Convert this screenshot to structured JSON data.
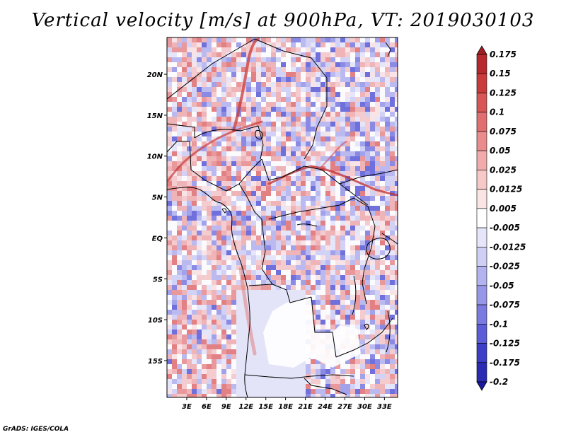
{
  "title": "Vertical velocity [m/s] at 900hPa, VT: 2019030103",
  "credit": "GrADS: IGES/COLA",
  "map": {
    "lon_range": [
      0,
      35
    ],
    "lat_range": [
      -19.5,
      24.5
    ],
    "lat_ticks": [
      {
        "value": 20,
        "label": "20N"
      },
      {
        "value": 15,
        "label": "15N"
      },
      {
        "value": 10,
        "label": "10N"
      },
      {
        "value": 5,
        "label": "5N"
      },
      {
        "value": 0,
        "label": "EQ"
      },
      {
        "value": -5,
        "label": "5S"
      },
      {
        "value": -10,
        "label": "10S"
      },
      {
        "value": -15,
        "label": "15S"
      }
    ],
    "lon_ticks": [
      {
        "value": 3,
        "label": "3E"
      },
      {
        "value": 6,
        "label": "6E"
      },
      {
        "value": 9,
        "label": "9E"
      },
      {
        "value": 12,
        "label": "12E"
      },
      {
        "value": 15,
        "label": "15E"
      },
      {
        "value": 18,
        "label": "18E"
      },
      {
        "value": 21,
        "label": "21E"
      },
      {
        "value": 24,
        "label": "24E"
      },
      {
        "value": 27,
        "label": "27E"
      },
      {
        "value": 30,
        "label": "30E"
      },
      {
        "value": 33,
        "label": "33E"
      }
    ]
  },
  "colorbar": {
    "labels": [
      "0.175",
      "0.15",
      "0.125",
      "0.1",
      "0.075",
      "0.05",
      "0.025",
      "0.0125",
      "0.005",
      "-0.005",
      "-0.0125",
      "-0.025",
      "-0.05",
      "-0.075",
      "-0.1",
      "-0.125",
      "-0.175",
      "-0.2"
    ],
    "colors": [
      "#a01f23",
      "#b8272b",
      "#cc3b3b",
      "#d85656",
      "#e26f6f",
      "#ea8c8c",
      "#f1abab",
      "#f7c8c8",
      "#fbe4e4",
      "#ffffff",
      "#e6e6fb",
      "#cfcff6",
      "#b3b3f0",
      "#9797e9",
      "#7a7ae1",
      "#5c5cd8",
      "#3d3dc9",
      "#2a2ab3",
      "#1a1aa0"
    ]
  },
  "chart_data": {
    "type": "heatmap",
    "title": "Vertical velocity [m/s] at 900hPa, VT: 2019030103",
    "variable": "Vertical velocity",
    "units": "m/s",
    "level": "900hPa",
    "valid_time": "2019030103",
    "xlabel": "",
    "ylabel": "",
    "x_ticks": [
      "3E",
      "6E",
      "9E",
      "12E",
      "15E",
      "18E",
      "21E",
      "24E",
      "27E",
      "30E",
      "33E"
    ],
    "y_ticks": [
      "20N",
      "15N",
      "10N",
      "5N",
      "EQ",
      "5S",
      "10S",
      "15S"
    ],
    "color_levels": [
      -0.2,
      -0.175,
      -0.125,
      -0.1,
      -0.075,
      -0.05,
      -0.025,
      -0.0125,
      -0.005,
      0.005,
      0.0125,
      0.025,
      0.05,
      0.075,
      0.1,
      0.125,
      0.15,
      0.175
    ]
  }
}
